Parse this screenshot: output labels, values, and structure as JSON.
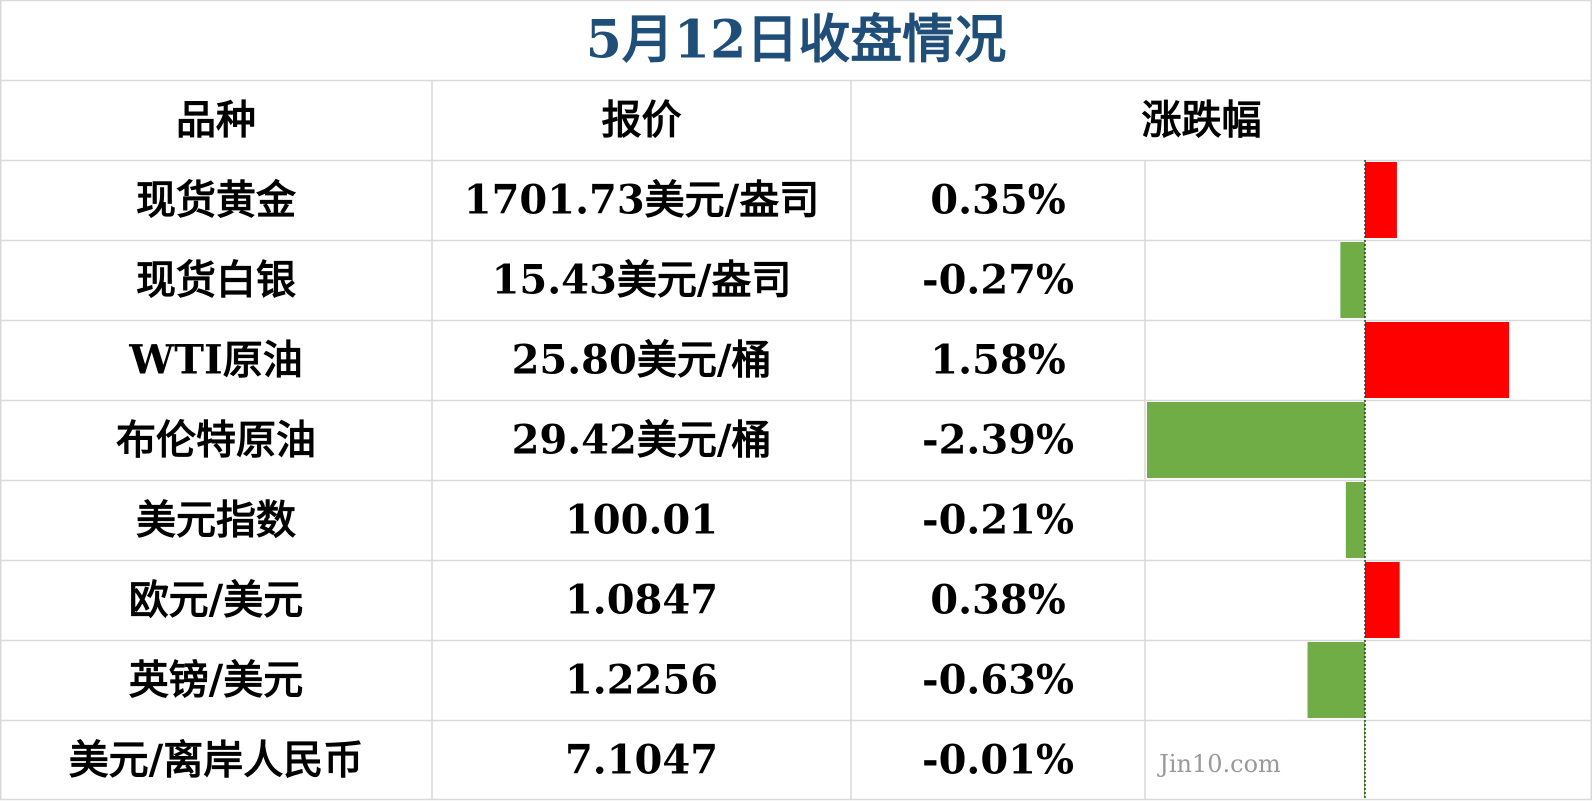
{
  "title": "5月12日收盘情况",
  "table": {
    "columns": [
      "品种",
      "报价",
      "涨跌幅"
    ],
    "rows": [
      [
        "现货黄金",
        "1701.73美元/盎司",
        {
          "value": 0.35,
          "label": "0.35%"
        }
      ],
      [
        "现货白银",
        "15.43美元/盎司",
        {
          "value": -0.27,
          "label": "-0.27%"
        }
      ],
      [
        "WTI原油",
        "25.80美元/桶",
        {
          "value": 1.58,
          "label": "1.58%"
        }
      ],
      [
        "布伦特原油",
        "29.42美元/桶",
        {
          "value": -2.39,
          "label": "-2.39%"
        }
      ],
      [
        "美元指数",
        "100.01",
        {
          "value": -0.21,
          "label": "-0.21%"
        }
      ],
      [
        "欧元/美元",
        "1.0847",
        {
          "value": 0.38,
          "label": "0.38%"
        }
      ],
      [
        "英镑/美元",
        "1.2256",
        {
          "value": -0.63,
          "label": "-0.63%"
        }
      ],
      [
        "美元/离岸人民币",
        "7.1047",
        {
          "value": -0.01,
          "label": "-0.01%"
        }
      ]
    ]
  },
  "bar_colors": {
    "up": "#ff0000",
    "down": "#70ad47"
  },
  "watermark": "Jin10.com"
}
